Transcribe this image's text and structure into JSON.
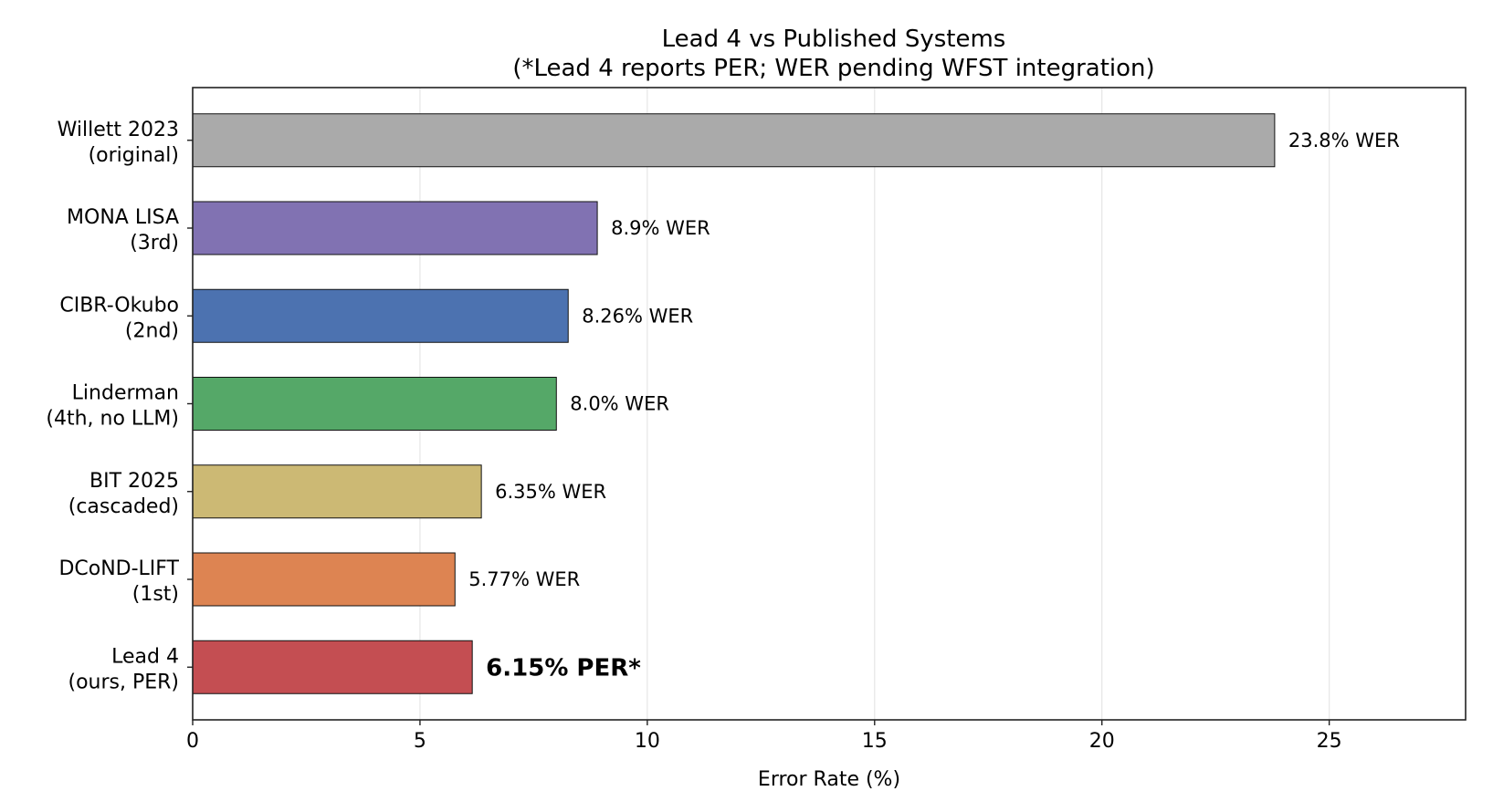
{
  "chart_data": {
    "type": "bar",
    "orientation": "horizontal",
    "title": "Lead 4 vs Published Systems",
    "subtitle": "(*Lead 4 reports PER; WER pending WFST integration)",
    "xlabel": "Error Rate (%)",
    "ylabel": "",
    "xlim": [
      0,
      28
    ],
    "xticks": [
      "0",
      "5",
      "10",
      "15",
      "20",
      "25"
    ],
    "grid": "x",
    "categories": [
      [
        "Willett 2023",
        "(original)"
      ],
      [
        "MONA LISA",
        "(3rd)"
      ],
      [
        "CIBR-Okubo",
        "(2nd)"
      ],
      [
        "Linderman",
        "(4th, no LLM)"
      ],
      [
        "BIT 2025",
        "(cascaded)"
      ],
      [
        "DCoND-LIFT",
        "(1st)"
      ],
      [
        "Lead 4",
        "(ours, PER)"
      ]
    ],
    "values": [
      23.8,
      8.9,
      8.26,
      8.0,
      6.35,
      5.77,
      6.15
    ],
    "data_labels": [
      "23.8% WER",
      "8.9% WER",
      "8.26% WER",
      "8.0% WER",
      "6.35% WER",
      "5.77% WER",
      "6.15% PER*"
    ],
    "colors": [
      "#aaaaaa",
      "#8172b2",
      "#4c72b0",
      "#55a868",
      "#ccb974",
      "#dd8452",
      "#c44e52"
    ],
    "highlight_index": 6
  }
}
